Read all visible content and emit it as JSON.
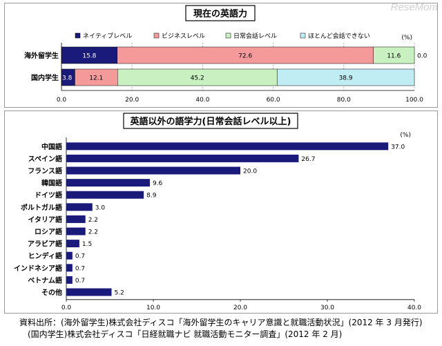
{
  "watermark": "ReseMom",
  "chart_data": [
    {
      "type": "bar",
      "orientation": "horizontal-stacked",
      "title": "現在の英語力",
      "unit": "(%)",
      "categories": [
        "海外留学生",
        "国内学生"
      ],
      "series": [
        {
          "name": "ネイティブレベル",
          "color": "#1a1a7a",
          "values": [
            15.8,
            3.8
          ]
        },
        {
          "name": "ビジネスレベル",
          "color": "#f49a9a",
          "values": [
            72.6,
            12.1
          ]
        },
        {
          "name": "日常会話レベル",
          "color": "#c8f0c0",
          "values": [
            11.6,
            45.2
          ]
        },
        {
          "name": "ほとんど会話できない",
          "color": "#c0ecf4",
          "values": [
            0.0,
            38.9
          ]
        }
      ],
      "xlim": [
        0,
        100
      ],
      "xticks": [
        "0.0",
        "20.0",
        "40.0",
        "60.0",
        "80.0",
        "100.0"
      ],
      "grid": true
    },
    {
      "type": "bar",
      "orientation": "horizontal",
      "title": "英語以外の語学力(日常会話レベル以上)",
      "unit": "(%)",
      "categories": [
        "中国語",
        "スペイン語",
        "フランス語",
        "韓国語",
        "ドイツ語",
        "ポルトガル語",
        "イタリア語",
        "ロシア語",
        "アラビア語",
        "ヒンディ語",
        "インドネシア語",
        "ベトナム語",
        "その他"
      ],
      "values": [
        37.0,
        26.7,
        20.0,
        9.6,
        8.9,
        3.0,
        2.2,
        2.2,
        1.5,
        0.7,
        0.7,
        0.7,
        5.2
      ],
      "color": "#1a1a7a",
      "xlim": [
        0,
        40
      ],
      "xticks": [
        "0.0",
        "10.0",
        "20.0",
        "30.0",
        "40.0"
      ],
      "grid": false
    }
  ],
  "source": {
    "line1": "資料出所：(海外留学生)株式会社ディスコ「海外留学生のキャリア意識と就職活動状況」(2012 年 3 月発行)",
    "line2": "(国内学生)株式会社ディスコ「日経就職ナビ 就職活動モニター調査」(2012 年 2 月)"
  }
}
